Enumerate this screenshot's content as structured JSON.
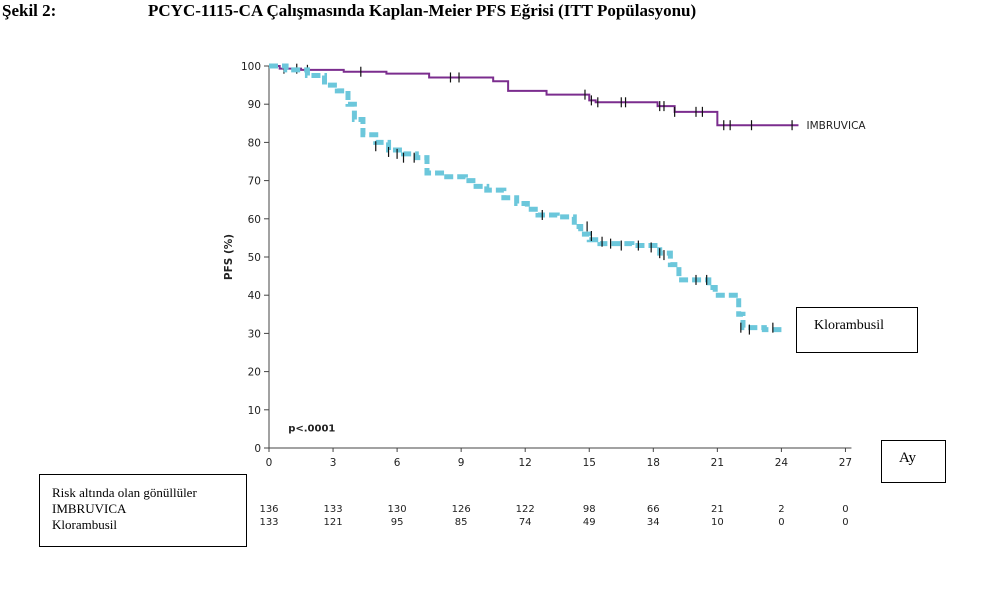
{
  "title": {
    "label": "Şekil 2:",
    "text": "PCYC-1115-CA Çalışmasında Kaplan-Meier PFS Eğrisi (ITT Popülasyonu)"
  },
  "chart_data": {
    "type": "line",
    "title": "PCYC-1115-CA Çalışmasında Kaplan-Meier PFS Eğrisi (ITT Popülasyonu)",
    "ylabel": "PFS (%)",
    "xlabel": "Ay",
    "xlim": [
      0,
      27
    ],
    "ylim": [
      0,
      100
    ],
    "xticks": [
      0,
      3,
      6,
      9,
      12,
      15,
      18,
      21,
      24,
      27
    ],
    "yticks": [
      0,
      10,
      20,
      30,
      40,
      50,
      60,
      70,
      80,
      90,
      100
    ],
    "annotation": "p<.0001",
    "series": [
      {
        "name": "IMBRUVICA",
        "color": "#7b2d8e",
        "style": "solid",
        "steps": [
          [
            0,
            100
          ],
          [
            0.5,
            99.3
          ],
          [
            1.5,
            99
          ],
          [
            3.5,
            98.5
          ],
          [
            5.5,
            98
          ],
          [
            7.5,
            97
          ],
          [
            10.5,
            96
          ],
          [
            11.2,
            93.5
          ],
          [
            13,
            92.5
          ],
          [
            15,
            91
          ],
          [
            15.3,
            90.5
          ],
          [
            18.2,
            89.5
          ],
          [
            19,
            88
          ],
          [
            21,
            84.5
          ],
          [
            24.8,
            84.5
          ]
        ],
        "censored": [
          [
            0.7,
            99.3
          ],
          [
            1.3,
            99.3
          ],
          [
            1.8,
            99
          ],
          [
            4.3,
            98.5
          ],
          [
            8.5,
            97
          ],
          [
            8.9,
            97
          ],
          [
            14.8,
            92.5
          ],
          [
            15.1,
            91
          ],
          [
            15.4,
            90.5
          ],
          [
            16.5,
            90.5
          ],
          [
            16.7,
            90.5
          ],
          [
            18.3,
            89.5
          ],
          [
            18.5,
            89.5
          ],
          [
            19.0,
            88
          ],
          [
            20.0,
            88
          ],
          [
            20.3,
            88
          ],
          [
            21.3,
            84.5
          ],
          [
            21.6,
            84.5
          ],
          [
            22.6,
            84.5
          ],
          [
            24.5,
            84.5
          ]
        ]
      },
      {
        "name": "Klorambusil",
        "color": "#6cc7db",
        "style": "dashed",
        "steps": [
          [
            0,
            100
          ],
          [
            0.8,
            99
          ],
          [
            1.8,
            97.5
          ],
          [
            2.6,
            95
          ],
          [
            3.2,
            93.5
          ],
          [
            3.7,
            90
          ],
          [
            4.0,
            86
          ],
          [
            4.4,
            82
          ],
          [
            5.0,
            80
          ],
          [
            5.6,
            78
          ],
          [
            6.3,
            77
          ],
          [
            6.9,
            76
          ],
          [
            7.4,
            72
          ],
          [
            8.2,
            71
          ],
          [
            9.2,
            70
          ],
          [
            9.7,
            68.5
          ],
          [
            10.2,
            67.5
          ],
          [
            11.0,
            65.5
          ],
          [
            11.6,
            64
          ],
          [
            12.1,
            62.5
          ],
          [
            12.6,
            61
          ],
          [
            13.5,
            60.5
          ],
          [
            14.3,
            58
          ],
          [
            14.6,
            56
          ],
          [
            15.0,
            54.5
          ],
          [
            15.5,
            53.5
          ],
          [
            17.0,
            53
          ],
          [
            18.3,
            51
          ],
          [
            18.8,
            48
          ],
          [
            19.2,
            44
          ],
          [
            20.0,
            44
          ],
          [
            20.6,
            42
          ],
          [
            20.9,
            40
          ],
          [
            21.7,
            40
          ],
          [
            22.0,
            35
          ],
          [
            22.2,
            31.5
          ],
          [
            23.2,
            31
          ],
          [
            24.1,
            31
          ]
        ],
        "censored": [
          [
            5.0,
            79
          ],
          [
            5.6,
            77.5
          ],
          [
            6.0,
            77
          ],
          [
            6.3,
            76
          ],
          [
            6.8,
            76
          ],
          [
            12.8,
            61
          ],
          [
            14.9,
            58
          ],
          [
            15.1,
            55.5
          ],
          [
            15.6,
            54
          ],
          [
            16.0,
            53.5
          ],
          [
            16.5,
            53
          ],
          [
            17.3,
            53
          ],
          [
            17.9,
            52.5
          ],
          [
            18.3,
            51
          ],
          [
            18.5,
            50.5
          ],
          [
            20.0,
            44
          ],
          [
            20.5,
            44
          ],
          [
            22.1,
            31.5
          ],
          [
            22.5,
            31
          ],
          [
            23.6,
            31.5
          ]
        ]
      }
    ],
    "risk_table": {
      "header": "Risk altında olan gönüllüler",
      "times": [
        0,
        3,
        6,
        9,
        12,
        15,
        18,
        21,
        24,
        27
      ],
      "rows": [
        {
          "name": "IMBRUVICA",
          "values": [
            "136",
            "133",
            "130",
            "126",
            "122",
            "98",
            "66",
            "21",
            "2",
            "0"
          ]
        },
        {
          "name": "Klorambusil",
          "values": [
            "133",
            "121",
            "95",
            "85",
            "74",
            "49",
            "34",
            "10",
            "0",
            "0"
          ]
        }
      ]
    }
  }
}
